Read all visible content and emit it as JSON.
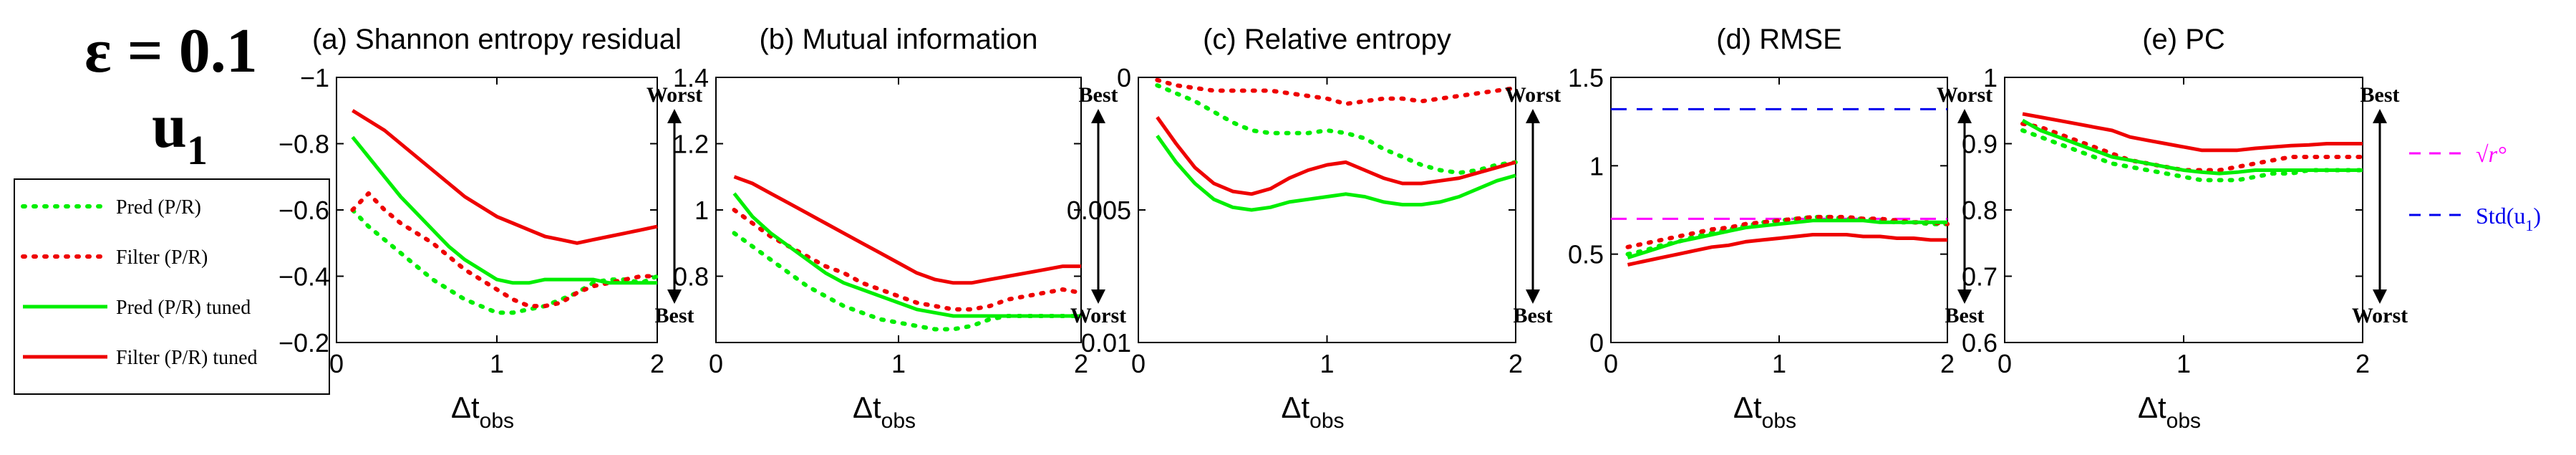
{
  "figure": {
    "epsilon_label": "ε = 0.1",
    "variable_label": "u",
    "variable_sub": "1"
  },
  "legend": {
    "entries": [
      {
        "label": "Pred (P/R)",
        "color": "#00ee00",
        "style": "dotted"
      },
      {
        "label": "Filter (P/R)",
        "color": "#ee0000",
        "style": "dotted"
      },
      {
        "label": "Pred (P/R) tuned",
        "color": "#00ee00",
        "style": "solid"
      },
      {
        "label": "Filter (P/R) tuned",
        "color": "#ee0000",
        "style": "solid"
      }
    ]
  },
  "colors": {
    "green": "#00ee00",
    "red": "#ee0000",
    "blue_ref": "#0000ee",
    "magenta_ref": "#ff00ff",
    "axis": "#000000"
  },
  "side_legend": {
    "sqrt_label": "√r°",
    "std_label": "Std(u",
    "std_sub": "1",
    "std_close": ")"
  },
  "chart_data": [
    {
      "type": "line",
      "title": "(a) Shannon entropy residual",
      "xlabel": "Δt",
      "xlabel_sub": "obs",
      "ylabel": "",
      "xlim": [
        0,
        2
      ],
      "ylim": [
        -1,
        -0.2
      ],
      "y_reversed": true,
      "xticks": [
        0,
        1,
        2
      ],
      "xtick_labels": [
        "0",
        "1",
        "2"
      ],
      "yticks": [
        -1,
        -0.8,
        -0.6,
        -0.4,
        -0.2
      ],
      "ytick_labels": [
        "−1",
        "−0.8",
        "−0.6",
        "−0.4",
        "−0.2"
      ],
      "arrow": {
        "top": "Worst",
        "bottom": "Best"
      },
      "x": [
        0.1,
        0.2,
        0.3,
        0.4,
        0.5,
        0.6,
        0.7,
        0.8,
        0.9,
        1.0,
        1.1,
        1.2,
        1.3,
        1.4,
        1.5,
        1.6,
        1.7,
        1.8,
        1.9,
        2.0
      ],
      "series": [
        {
          "name": "Pred (P/R)",
          "color": "#00ee00",
          "dash": "dotted",
          "values": [
            -0.6,
            -0.55,
            -0.51,
            -0.47,
            -0.43,
            -0.39,
            -0.36,
            -0.33,
            -0.31,
            -0.29,
            -0.29,
            -0.3,
            -0.31,
            -0.33,
            -0.35,
            -0.38,
            -0.39,
            -0.39,
            -0.38,
            -0.4
          ]
        },
        {
          "name": "Filter (P/R)",
          "color": "#ee0000",
          "dash": "dotted",
          "values": [
            -0.6,
            -0.65,
            -0.6,
            -0.56,
            -0.53,
            -0.5,
            -0.46,
            -0.42,
            -0.39,
            -0.36,
            -0.33,
            -0.31,
            -0.31,
            -0.32,
            -0.35,
            -0.37,
            -0.38,
            -0.39,
            -0.4,
            -0.4
          ]
        },
        {
          "name": "Pred (P/R) tuned",
          "color": "#00ee00",
          "dash": "solid",
          "values": [
            -0.82,
            -0.76,
            -0.7,
            -0.64,
            -0.59,
            -0.54,
            -0.49,
            -0.45,
            -0.42,
            -0.39,
            -0.38,
            -0.38,
            -0.39,
            -0.39,
            -0.39,
            -0.39,
            -0.38,
            -0.38,
            -0.38,
            -0.38
          ]
        },
        {
          "name": "Filter (P/R) tuned",
          "color": "#ee0000",
          "dash": "solid",
          "values": [
            -0.9,
            -0.87,
            -0.84,
            -0.8,
            -0.76,
            -0.72,
            -0.68,
            -0.64,
            -0.61,
            -0.58,
            -0.56,
            -0.54,
            -0.52,
            -0.51,
            -0.5,
            -0.51,
            -0.52,
            -0.53,
            -0.54,
            -0.55
          ]
        }
      ]
    },
    {
      "type": "line",
      "title": "(b) Mutual information",
      "xlabel": "Δt",
      "xlabel_sub": "obs",
      "ylabel": "",
      "xlim": [
        0,
        2
      ],
      "ylim": [
        0.6,
        1.4
      ],
      "y_reversed": false,
      "xticks": [
        0,
        1,
        2
      ],
      "xtick_labels": [
        "0",
        "1",
        "2"
      ],
      "yticks": [
        0.8,
        1.0,
        1.2,
        1.4
      ],
      "ytick_labels": [
        "0.8",
        "1",
        "1.2",
        "1.4"
      ],
      "arrow": {
        "top": "Best",
        "bottom": "Worst"
      },
      "x": [
        0.1,
        0.2,
        0.3,
        0.4,
        0.5,
        0.6,
        0.7,
        0.8,
        0.9,
        1.0,
        1.1,
        1.2,
        1.3,
        1.4,
        1.5,
        1.6,
        1.7,
        1.8,
        1.9,
        2.0
      ],
      "series": [
        {
          "name": "Pred (P/R)",
          "color": "#00ee00",
          "dash": "dotted",
          "values": [
            0.93,
            0.89,
            0.85,
            0.81,
            0.77,
            0.74,
            0.71,
            0.69,
            0.67,
            0.66,
            0.65,
            0.64,
            0.64,
            0.65,
            0.67,
            0.68,
            0.68,
            0.68,
            0.68,
            0.68
          ]
        },
        {
          "name": "Filter (P/R)",
          "color": "#ee0000",
          "dash": "dotted",
          "values": [
            1.0,
            0.96,
            0.92,
            0.89,
            0.86,
            0.83,
            0.81,
            0.78,
            0.76,
            0.74,
            0.72,
            0.71,
            0.7,
            0.7,
            0.71,
            0.73,
            0.74,
            0.75,
            0.76,
            0.75
          ]
        },
        {
          "name": "Pred (P/R) tuned",
          "color": "#00ee00",
          "dash": "solid",
          "values": [
            1.05,
            0.98,
            0.93,
            0.89,
            0.85,
            0.81,
            0.78,
            0.76,
            0.74,
            0.72,
            0.7,
            0.69,
            0.68,
            0.68,
            0.68,
            0.68,
            0.68,
            0.68,
            0.68,
            0.68
          ]
        },
        {
          "name": "Filter (P/R) tuned",
          "color": "#ee0000",
          "dash": "solid",
          "values": [
            1.1,
            1.08,
            1.05,
            1.02,
            0.99,
            0.96,
            0.93,
            0.9,
            0.87,
            0.84,
            0.81,
            0.79,
            0.78,
            0.78,
            0.79,
            0.8,
            0.81,
            0.82,
            0.83,
            0.83
          ]
        }
      ]
    },
    {
      "type": "line",
      "title": "(c) Relative entropy",
      "xlabel": "Δt",
      "xlabel_sub": "obs",
      "ylabel": "",
      "xlim": [
        0,
        2
      ],
      "ylim": [
        0,
        0.01
      ],
      "y_reversed": true,
      "xticks": [
        0,
        1,
        2
      ],
      "xtick_labels": [
        "0",
        "1",
        "2"
      ],
      "yticks": [
        0,
        0.005,
        0.01
      ],
      "ytick_labels": [
        "0",
        "0.005",
        "0.01"
      ],
      "arrow": {
        "top": "Worst",
        "bottom": "Best"
      },
      "x": [
        0.1,
        0.2,
        0.3,
        0.4,
        0.5,
        0.6,
        0.7,
        0.8,
        0.9,
        1.0,
        1.1,
        1.2,
        1.3,
        1.4,
        1.5,
        1.6,
        1.7,
        1.8,
        1.9,
        2.0
      ],
      "series": [
        {
          "name": "Pred (P/R)",
          "color": "#00ee00",
          "dash": "dotted",
          "values": [
            0.0003,
            0.0006,
            0.0009,
            0.0013,
            0.0017,
            0.002,
            0.0021,
            0.0021,
            0.0021,
            0.002,
            0.0021,
            0.0023,
            0.0027,
            0.003,
            0.0033,
            0.0035,
            0.0036,
            0.0035,
            0.0033,
            0.0032
          ]
        },
        {
          "name": "Filter (P/R)",
          "color": "#ee0000",
          "dash": "dotted",
          "values": [
            0.0001,
            0.0003,
            0.0004,
            0.0005,
            0.0005,
            0.0005,
            0.0005,
            0.0006,
            0.0007,
            0.0008,
            0.001,
            0.0009,
            0.0008,
            0.0008,
            0.0009,
            0.0008,
            0.0007,
            0.0006,
            0.0005,
            0.0004
          ]
        },
        {
          "name": "Pred (P/R) tuned",
          "color": "#00ee00",
          "dash": "solid",
          "values": [
            0.0022,
            0.0032,
            0.004,
            0.0046,
            0.0049,
            0.005,
            0.0049,
            0.0047,
            0.0046,
            0.0045,
            0.0044,
            0.0045,
            0.0047,
            0.0048,
            0.0048,
            0.0047,
            0.0045,
            0.0042,
            0.0039,
            0.0037
          ]
        },
        {
          "name": "Filter (P/R) tuned",
          "color": "#ee0000",
          "dash": "solid",
          "values": [
            0.0015,
            0.0025,
            0.0034,
            0.004,
            0.0043,
            0.0044,
            0.0042,
            0.0038,
            0.0035,
            0.0033,
            0.0032,
            0.0035,
            0.0038,
            0.004,
            0.004,
            0.0039,
            0.0038,
            0.0036,
            0.0034,
            0.0032
          ]
        }
      ]
    },
    {
      "type": "line",
      "title": "(d) RMSE",
      "xlabel": "Δt",
      "xlabel_sub": "obs",
      "ylabel": "",
      "xlim": [
        0,
        2
      ],
      "ylim": [
        0,
        1.5
      ],
      "y_reversed": false,
      "xticks": [
        0,
        1,
        2
      ],
      "xtick_labels": [
        "0",
        "1",
        "2"
      ],
      "yticks": [
        0,
        0.5,
        1.0,
        1.5
      ],
      "ytick_labels": [
        "0",
        "0.5",
        "1",
        "1.5"
      ],
      "arrow": {
        "top": "Worst",
        "bottom": "Best"
      },
      "reference_lines": [
        {
          "name": "Std(u1)",
          "value": 1.32,
          "color": "#0000ee"
        },
        {
          "name": "sqrt(r_o)",
          "value": 0.7,
          "color": "#ff00ff"
        }
      ],
      "x": [
        0.1,
        0.2,
        0.3,
        0.4,
        0.5,
        0.6,
        0.7,
        0.8,
        0.9,
        1.0,
        1.1,
        1.2,
        1.3,
        1.4,
        1.5,
        1.6,
        1.7,
        1.8,
        1.9,
        2.0
      ],
      "series": [
        {
          "name": "Pred (P/R)",
          "color": "#00ee00",
          "dash": "dotted",
          "values": [
            0.5,
            0.52,
            0.55,
            0.57,
            0.6,
            0.62,
            0.64,
            0.66,
            0.68,
            0.69,
            0.7,
            0.71,
            0.71,
            0.7,
            0.7,
            0.69,
            0.68,
            0.68,
            0.67,
            0.67
          ]
        },
        {
          "name": "Filter (P/R)",
          "color": "#ee0000",
          "dash": "dotted",
          "values": [
            0.54,
            0.56,
            0.58,
            0.6,
            0.62,
            0.64,
            0.65,
            0.67,
            0.68,
            0.69,
            0.7,
            0.71,
            0.71,
            0.71,
            0.7,
            0.7,
            0.69,
            0.68,
            0.68,
            0.67
          ]
        },
        {
          "name": "Pred (P/R) tuned",
          "color": "#00ee00",
          "dash": "solid",
          "values": [
            0.48,
            0.51,
            0.54,
            0.57,
            0.59,
            0.61,
            0.63,
            0.65,
            0.66,
            0.67,
            0.68,
            0.69,
            0.69,
            0.69,
            0.69,
            0.68,
            0.68,
            0.68,
            0.68,
            0.68
          ]
        },
        {
          "name": "Filter (P/R) tuned",
          "color": "#ee0000",
          "dash": "solid",
          "values": [
            0.44,
            0.46,
            0.48,
            0.5,
            0.52,
            0.54,
            0.55,
            0.57,
            0.58,
            0.59,
            0.6,
            0.61,
            0.61,
            0.61,
            0.6,
            0.6,
            0.59,
            0.59,
            0.58,
            0.58
          ]
        }
      ]
    },
    {
      "type": "line",
      "title": "(e) PC",
      "xlabel": "Δt",
      "xlabel_sub": "obs",
      "ylabel": "",
      "xlim": [
        0,
        2
      ],
      "ylim": [
        0.6,
        1.0
      ],
      "y_reversed": false,
      "xticks": [
        0,
        1,
        2
      ],
      "xtick_labels": [
        "0",
        "1",
        "2"
      ],
      "yticks": [
        0.6,
        0.7,
        0.8,
        0.9,
        1.0
      ],
      "ytick_labels": [
        "0.6",
        "0.7",
        "0.8",
        "0.9",
        "1"
      ],
      "arrow": {
        "top": "Best",
        "bottom": "Worst"
      },
      "x": [
        0.1,
        0.2,
        0.3,
        0.4,
        0.5,
        0.6,
        0.7,
        0.8,
        0.9,
        1.0,
        1.1,
        1.2,
        1.3,
        1.4,
        1.5,
        1.6,
        1.7,
        1.8,
        1.9,
        2.0
      ],
      "series": [
        {
          "name": "Pred (P/R)",
          "color": "#00ee00",
          "dash": "dotted",
          "values": [
            0.92,
            0.91,
            0.9,
            0.89,
            0.88,
            0.87,
            0.865,
            0.86,
            0.855,
            0.85,
            0.845,
            0.845,
            0.845,
            0.85,
            0.855,
            0.855,
            0.86,
            0.86,
            0.86,
            0.86
          ]
        },
        {
          "name": "Filter (P/R)",
          "color": "#ee0000",
          "dash": "dotted",
          "values": [
            0.93,
            0.925,
            0.915,
            0.905,
            0.895,
            0.885,
            0.875,
            0.87,
            0.865,
            0.86,
            0.86,
            0.86,
            0.865,
            0.87,
            0.875,
            0.88,
            0.88,
            0.88,
            0.88,
            0.88
          ]
        },
        {
          "name": "Pred (P/R) tuned",
          "color": "#00ee00",
          "dash": "solid",
          "values": [
            0.935,
            0.92,
            0.91,
            0.9,
            0.89,
            0.88,
            0.875,
            0.87,
            0.865,
            0.86,
            0.857,
            0.855,
            0.857,
            0.86,
            0.86,
            0.86,
            0.86,
            0.86,
            0.86,
            0.86
          ]
        },
        {
          "name": "Filter (P/R) tuned",
          "color": "#ee0000",
          "dash": "solid",
          "values": [
            0.945,
            0.94,
            0.935,
            0.93,
            0.925,
            0.92,
            0.91,
            0.905,
            0.9,
            0.895,
            0.89,
            0.89,
            0.89,
            0.893,
            0.895,
            0.897,
            0.898,
            0.9,
            0.9,
            0.9
          ]
        }
      ]
    }
  ]
}
